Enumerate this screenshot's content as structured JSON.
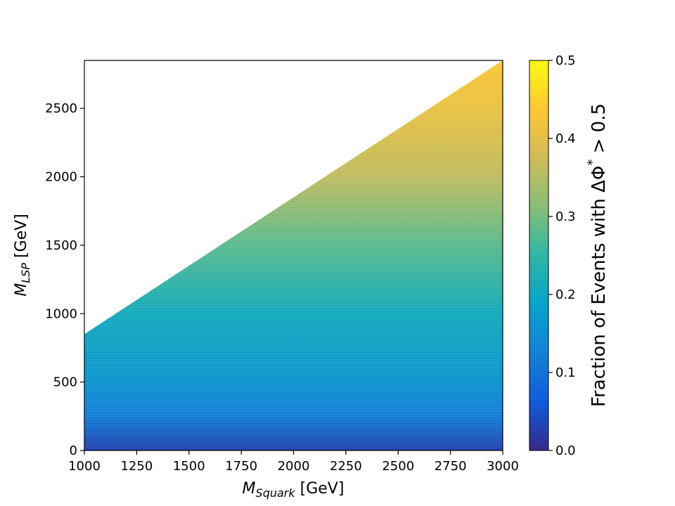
{
  "chart_data": {
    "type": "heatmap",
    "title": "",
    "xlabel": {
      "main": "M",
      "sub": "Squark",
      "unit": " [GeV]"
    },
    "ylabel": {
      "main": "M",
      "sub": "LSP",
      "unit": " [GeV]"
    },
    "xlim": [
      1000,
      3000
    ],
    "ylim": [
      0,
      2850
    ],
    "x_ticks": [
      "1000",
      "1250",
      "1500",
      "1750",
      "2000",
      "2250",
      "2500",
      "2750",
      "3000"
    ],
    "y_ticks": [
      "0",
      "500",
      "1000",
      "1500",
      "2000",
      "2500"
    ],
    "region": "M_LSP <= M_Squark - 150 (upper-left triangle empty)",
    "boundary": [
      [
        1000,
        850
      ],
      [
        3000,
        2850
      ]
    ],
    "colorbar": {
      "label_prefix": "Fraction of Events with ΔΦ",
      "label_sup": "*",
      "label_suffix": " > 0.5",
      "range": [
        0.0,
        0.5
      ],
      "ticks": [
        "0.0",
        "0.1",
        "0.2",
        "0.3",
        "0.4",
        "0.5"
      ],
      "colormap": [
        "#352a87",
        "#0f5cdd",
        "#1481d6",
        "#06a4ca",
        "#2eb7a4",
        "#87bf77",
        "#d1bb59",
        "#fec832",
        "#f9fb0e"
      ]
    },
    "samples": [
      {
        "M_LSP": 0,
        "value": 0.03
      },
      {
        "M_LSP": 250,
        "value": 0.12
      },
      {
        "M_LSP": 500,
        "value": 0.16
      },
      {
        "M_LSP": 1000,
        "value": 0.21
      },
      {
        "M_LSP": 1500,
        "value": 0.28
      },
      {
        "M_LSP": 2000,
        "value": 0.36
      },
      {
        "M_LSP": 2500,
        "value": 0.41
      },
      {
        "M_LSP": 2850,
        "value": 0.43
      }
    ]
  }
}
